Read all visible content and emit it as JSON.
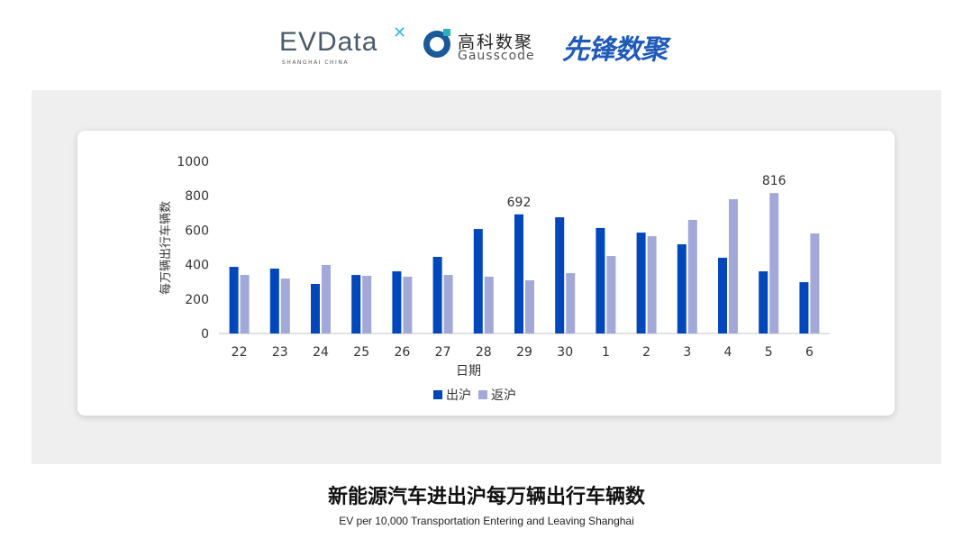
{
  "logos": {
    "evdata": "EVData",
    "evdata_sub": "SHANGHAI CHINA",
    "gauss_cn": "高科数聚",
    "gauss_en": "Gausscode",
    "xianfeng": "先锋数聚"
  },
  "chart_data": {
    "type": "bar",
    "title": "新能源汽车进出沪每万辆出行车辆数",
    "subtitle": "EV per 10,000 Transportation Entering and Leaving Shanghai",
    "xlabel": "日期",
    "ylabel": "每万辆出行车辆数",
    "ylim": [
      0,
      1000
    ],
    "yticks": [
      0,
      200,
      400,
      600,
      800,
      1000
    ],
    "grid": false,
    "legend": "bottom",
    "categories": [
      "22",
      "23",
      "24",
      "25",
      "26",
      "27",
      "28",
      "29",
      "30",
      "1",
      "2",
      "3",
      "4",
      "5",
      "6"
    ],
    "series": [
      {
        "name": "出沪",
        "color": "#0047bb",
        "values": [
          387,
          377,
          288,
          340,
          361,
          445,
          607,
          692,
          675,
          613,
          586,
          518,
          440,
          361,
          298
        ]
      },
      {
        "name": "返沪",
        "color": "#a2a9d8",
        "values": [
          340,
          319,
          398,
          335,
          330,
          340,
          330,
          309,
          351,
          450,
          565,
          660,
          780,
          816,
          581
        ]
      }
    ],
    "annotations": [
      {
        "category": "29",
        "series": "出沪",
        "text": "692"
      },
      {
        "category": "5",
        "series": "返沪",
        "text": "816"
      }
    ]
  }
}
